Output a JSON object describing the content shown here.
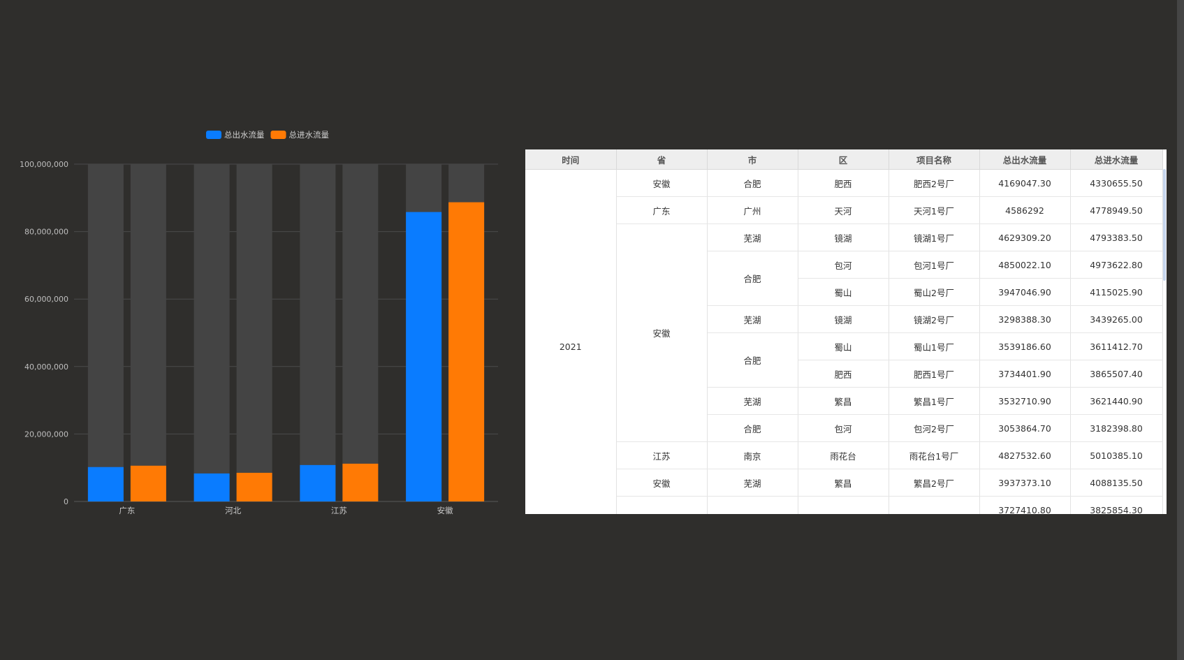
{
  "chart_data": {
    "type": "bar",
    "categories": [
      "广东",
      "河北",
      "江苏",
      "安徽"
    ],
    "series": [
      {
        "name": "总出水流量",
        "color": "#0a7cff",
        "values": [
          10200000,
          8300000,
          10800000,
          85800000
        ]
      },
      {
        "name": "总进水流量",
        "color": "#ff7a05",
        "values": [
          10600000,
          8500000,
          11200000,
          88700000
        ]
      }
    ],
    "ylim": [
      0,
      100000000
    ],
    "yticks": [
      "0",
      "20,000,000",
      "40,000,000",
      "60,000,000",
      "80,000,000",
      "100,000,000"
    ],
    "grid": true,
    "legend": "top-center",
    "background_bar": true
  },
  "table": {
    "headers": [
      "时间",
      "省",
      "市",
      "区",
      "项目名称",
      "总出水流量",
      "总进水流量"
    ],
    "year": "2021",
    "rows": [
      {
        "prov": "安徽",
        "city": "合肥",
        "district": "肥西",
        "project": "肥西2号厂",
        "out": "4169047.30",
        "in": "4330655.50"
      },
      {
        "prov": "广东",
        "city": "广州",
        "district": "天河",
        "project": "天河1号厂",
        "out": "4586292",
        "in": "4778949.50"
      },
      {
        "prov": "安徽",
        "city": "芜湖",
        "district": "镜湖",
        "project": "镜湖1号厂",
        "out": "4629309.20",
        "in": "4793383.50"
      },
      {
        "prov": "",
        "city": "合肥",
        "district": "包河",
        "project": "包河1号厂",
        "out": "4850022.10",
        "in": "4973622.80"
      },
      {
        "prov": "",
        "city": "",
        "district": "蜀山",
        "project": "蜀山2号厂",
        "out": "3947046.90",
        "in": "4115025.90"
      },
      {
        "prov": "",
        "city": "芜湖",
        "district": "镜湖",
        "project": "镜湖2号厂",
        "out": "3298388.30",
        "in": "3439265.00"
      },
      {
        "prov": "",
        "city": "合肥",
        "district": "蜀山",
        "project": "蜀山1号厂",
        "out": "3539186.60",
        "in": "3611412.70"
      },
      {
        "prov": "",
        "city": "",
        "district": "肥西",
        "project": "肥西1号厂",
        "out": "3734401.90",
        "in": "3865507.40"
      },
      {
        "prov": "",
        "city": "芜湖",
        "district": "繁昌",
        "project": "繁昌1号厂",
        "out": "3532710.90",
        "in": "3621440.90"
      },
      {
        "prov": "",
        "city": "合肥",
        "district": "包河",
        "project": "包河2号厂",
        "out": "3053864.70",
        "in": "3182398.80"
      },
      {
        "prov": "江苏",
        "city": "南京",
        "district": "雨花台",
        "project": "雨花台1号厂",
        "out": "4827532.60",
        "in": "5010385.10"
      },
      {
        "prov": "安徽",
        "city": "芜湖",
        "district": "繁昌",
        "project": "繁昌2号厂",
        "out": "3937373.10",
        "in": "4088135.50"
      },
      {
        "prov": "",
        "city": "",
        "district": "",
        "project": "",
        "out": "3727410.80",
        "in": "3825854.30"
      }
    ]
  }
}
